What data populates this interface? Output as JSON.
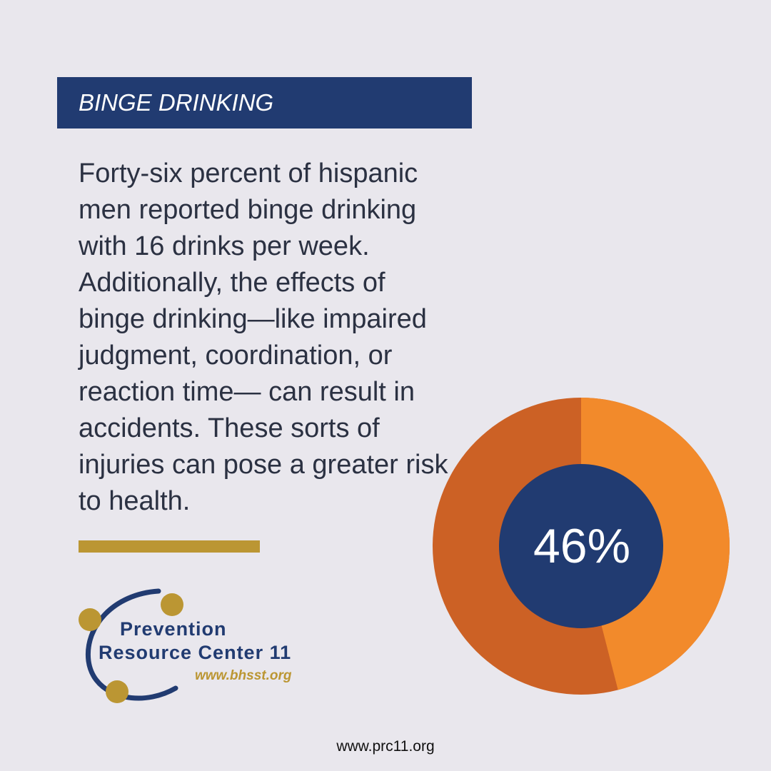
{
  "header": {
    "title": "BINGE DRINKING"
  },
  "body": {
    "paragraph": "Forty-six percent of hispanic men reported binge drinking with 16 drinks per week. Additionally, the effects of binge drinking—like impaired judgment, coordination, or reaction time— can result in accidents. These sorts of injuries can pose a greater risk to health."
  },
  "logo": {
    "line1": "Prevention",
    "line2": "Resource Center 11",
    "url": "www.bhsst.org"
  },
  "stat": {
    "label": "46%",
    "value_percent": 46
  },
  "colors": {
    "background": "#E9E7ED",
    "navy": "#213B71",
    "gold": "#BB9633",
    "orange_light": "#F28A2B",
    "orange_dark": "#CC6125"
  },
  "footer": {
    "url": "www.prc11.org"
  }
}
